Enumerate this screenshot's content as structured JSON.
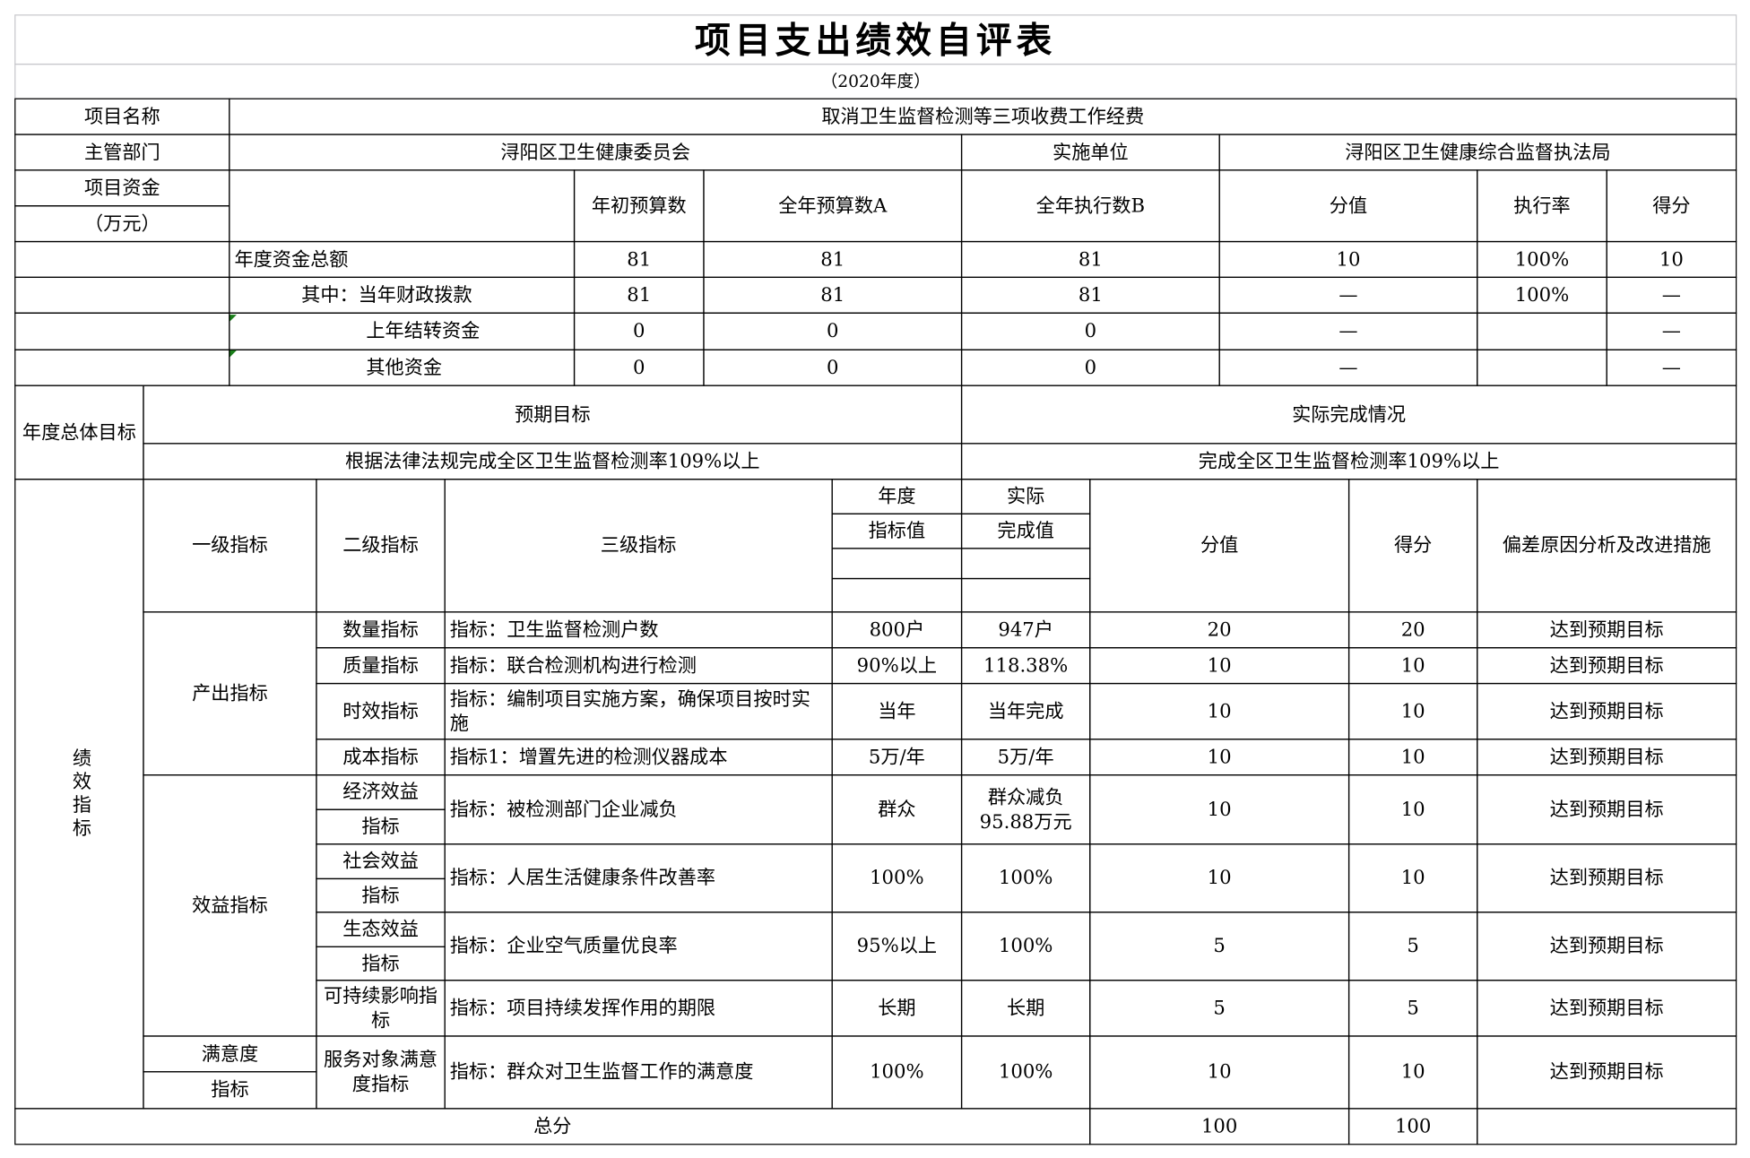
{
  "title": "项目支出绩效自评表",
  "subtitle": "（2020年度）",
  "project": {
    "name_label": "项目名称",
    "name": "取消卫生监督检测等三项收费工作经费",
    "dept_label": "主管部门",
    "dept": "浔阳区卫生健康委员会",
    "impl_label": "实施单位",
    "impl": "浔阳区卫生健康综合监督执法局"
  },
  "funds": {
    "label1": "项目资金",
    "label2": "（万元）",
    "headers": [
      "年初预算数",
      "全年预算数A",
      "全年执行数B",
      "分值",
      "执行率",
      "得分"
    ],
    "rows": [
      {
        "label": "年度资金总额",
        "values": [
          "81",
          "81",
          "81",
          "10",
          "100%",
          "10"
        ]
      },
      {
        "label": "其中：当年财政拨款",
        "values": [
          "81",
          "81",
          "81",
          "—",
          "100%",
          "—"
        ]
      },
      {
        "label": "上年结转资金",
        "values": [
          "0",
          "0",
          "0",
          "—",
          "",
          "—"
        ]
      },
      {
        "label": "其他资金",
        "values": [
          "0",
          "0",
          "0",
          "—",
          "",
          "—"
        ]
      }
    ]
  },
  "goals": {
    "label": "年度总体目标",
    "expected_label": "预期目标",
    "actual_label": "实际完成情况",
    "expected": "根据法律法规完成全区卫生监督检测率109%以上",
    "actual": "完成全区卫生监督检测率109%以上"
  },
  "indicators": {
    "label": "绩效指标",
    "headers": {
      "level1": "一级指标",
      "level2": "二级指标",
      "level3": "三级指标",
      "target_a": "年度",
      "target_b": "指标值",
      "actual_a": "实际",
      "actual_b": "完成值",
      "score_value": "分值",
      "score": "得分",
      "analysis": "偏差原因分析及改进措施"
    },
    "level1": [
      "产出指标",
      "效益指标",
      "满意度",
      "指标"
    ],
    "rows": [
      {
        "level2": "数量指标",
        "level3": "指标：卫生监督检测户数",
        "target": "800户",
        "actual": "947户",
        "value": "20",
        "score": "20",
        "analysis": "达到预期目标"
      },
      {
        "level2": "质量指标",
        "level3": "指标：联合检测机构进行检测",
        "target": "90%以上",
        "actual": "118.38%",
        "value": "10",
        "score": "10",
        "analysis": "达到预期目标"
      },
      {
        "level2": "时效指标",
        "level3": "指标：编制项目实施方案，确保项目按时实施",
        "target": "当年",
        "actual": "当年完成",
        "value": "10",
        "score": "10",
        "analysis": "达到预期目标"
      },
      {
        "level2": "成本指标",
        "level3": "指标1：增置先进的检测仪器成本",
        "target": "5万/年",
        "actual": "5万/年",
        "value": "10",
        "score": "10",
        "analysis": "达到预期目标"
      },
      {
        "level2": "经济效益",
        "level2b": "指标",
        "level3": "指标：被检测部门企业减负",
        "target": "群众",
        "actual": "群众减负95.88万元",
        "value": "10",
        "score": "10",
        "analysis": "达到预期目标"
      },
      {
        "level2": "社会效益",
        "level2b": "指标",
        "level3": "指标：人居生活健康条件改善率",
        "target": "100%",
        "actual": "100%",
        "value": "10",
        "score": "10",
        "analysis": "达到预期目标"
      },
      {
        "level2": "生态效益",
        "level2b": "指标",
        "level3": "指标：企业空气质量优良率",
        "target": "95%以上",
        "actual": "100%",
        "value": "5",
        "score": "5",
        "analysis": "达到预期目标"
      },
      {
        "level2": "可持续影响指标",
        "level3": "指标：项目持续发挥作用的期限",
        "target": "长期",
        "actual": "长期",
        "value": "5",
        "score": "5",
        "analysis": "达到预期目标"
      },
      {
        "level2": "服务对象满意度指标",
        "level3": "指标：群众对卫生监督工作的满意度",
        "target": "100%",
        "actual": "100%",
        "value": "10",
        "score": "10",
        "analysis": "达到预期目标"
      }
    ]
  },
  "total": {
    "label": "总分",
    "value": "100",
    "score": "100"
  }
}
